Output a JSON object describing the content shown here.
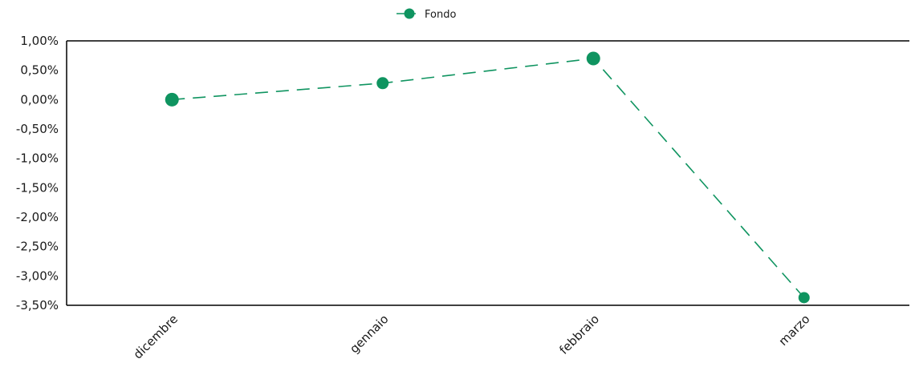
{
  "chart_data": {
    "type": "line",
    "categories": [
      "dicembre",
      "gennaio",
      "febbraio",
      "marzo"
    ],
    "series": [
      {
        "name": "Fondo",
        "values": [
          0.0,
          0.28,
          0.7,
          -3.37
        ],
        "color": "#0f9460",
        "line_style": "dashed",
        "marker": "circle"
      }
    ],
    "y_ticks": [
      "1,00%",
      "0,50%",
      "0,00%",
      "-0,50%",
      "-1,00%",
      "-1,50%",
      "-2,00%",
      "-2,50%",
      "-3,00%",
      "-3,50%"
    ],
    "ylim": [
      -3.5,
      1.0
    ],
    "grid": false,
    "legend_position": "top-center",
    "title": "",
    "xlabel": "",
    "ylabel": ""
  }
}
